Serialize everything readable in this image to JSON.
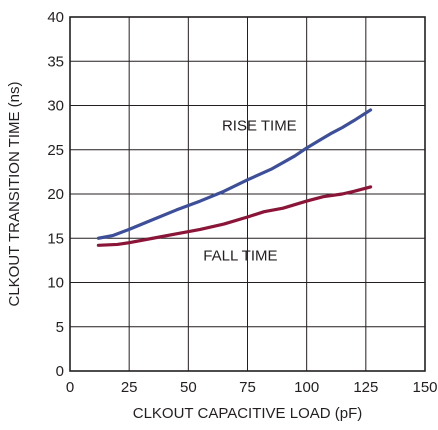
{
  "chart_data": {
    "type": "line",
    "title": "",
    "xlabel": "CLKOUT CAPACITIVE LOAD (pF)",
    "ylabel": "CLKOUT TRANSITION TIME (ns)",
    "xlim": [
      0,
      150
    ],
    "ylim": [
      0,
      40
    ],
    "xticks": [
      0,
      25,
      50,
      75,
      100,
      125,
      150
    ],
    "yticks": [
      0,
      5,
      10,
      15,
      20,
      25,
      30,
      35,
      40
    ],
    "grid": true,
    "series": [
      {
        "name": "RISE TIME",
        "color": "#3d4f9a",
        "x": [
          12,
          18,
          25,
          35,
          45,
          55,
          65,
          75,
          85,
          95,
          100,
          105,
          110,
          115,
          120,
          127
        ],
        "y": [
          15.0,
          15.3,
          16.0,
          17.1,
          18.2,
          19.2,
          20.3,
          21.6,
          22.8,
          24.3,
          25.2,
          26.0,
          26.8,
          27.5,
          28.3,
          29.5
        ]
      },
      {
        "name": "FALL TIME",
        "color": "#8b1538",
        "x": [
          12,
          20,
          25,
          35,
          45,
          55,
          65,
          75,
          82,
          90,
          100,
          107,
          115,
          120,
          127
        ],
        "y": [
          14.2,
          14.3,
          14.5,
          15.0,
          15.5,
          16.0,
          16.6,
          17.4,
          18.0,
          18.4,
          19.2,
          19.7,
          20.0,
          20.3,
          20.8
        ]
      }
    ],
    "annotations": [
      {
        "text": "RISE TIME",
        "x": 80,
        "y": 27.2
      },
      {
        "text": "FALL TIME",
        "x": 72,
        "y": 12.5
      }
    ]
  }
}
